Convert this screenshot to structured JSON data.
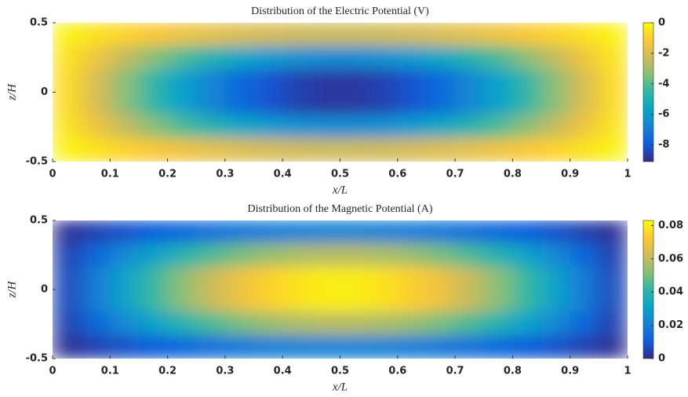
{
  "chart_data": [
    {
      "type": "heatmap",
      "title": "Distribution of the Electric Potential (V)",
      "xlabel": "x/L",
      "ylabel": "z/H",
      "x": [
        0.025,
        0.075,
        0.125,
        0.175,
        0.225,
        0.275,
        0.325,
        0.375,
        0.425,
        0.475,
        0.525,
        0.575,
        0.625,
        0.675,
        0.725,
        0.775,
        0.825,
        0.875,
        0.925,
        0.975
      ],
      "y": [
        0.4167,
        0.25,
        0.0833,
        -0.0833,
        -0.25,
        -0.4167
      ],
      "values": [
        [
          -0.18,
          -0.55,
          -0.9,
          -1.23,
          -1.53,
          -1.79,
          -2.01,
          -2.18,
          -2.29,
          -2.35,
          -2.35,
          -2.29,
          -2.18,
          -2.01,
          -1.79,
          -1.53,
          -1.23,
          -0.9,
          -0.55,
          -0.18
        ],
        [
          -0.51,
          -1.5,
          -2.46,
          -3.36,
          -4.18,
          -4.89,
          -5.49,
          -5.95,
          -6.26,
          -6.42,
          -6.42,
          -6.26,
          -5.95,
          -5.49,
          -4.89,
          -4.18,
          -3.36,
          -2.46,
          -1.5,
          -0.51
        ],
        [
          -0.69,
          -2.05,
          -3.36,
          -4.59,
          -5.71,
          -6.68,
          -7.49,
          -8.12,
          -8.55,
          -8.76,
          -8.76,
          -8.55,
          -8.12,
          -7.49,
          -6.68,
          -5.71,
          -4.59,
          -3.36,
          -2.05,
          -0.69
        ],
        [
          -0.69,
          -2.05,
          -3.36,
          -4.59,
          -5.71,
          -6.68,
          -7.49,
          -8.12,
          -8.55,
          -8.76,
          -8.76,
          -8.55,
          -8.12,
          -7.49,
          -6.68,
          -5.71,
          -4.59,
          -3.36,
          -2.05,
          -0.69
        ],
        [
          -0.51,
          -1.5,
          -2.46,
          -3.36,
          -4.18,
          -4.89,
          -5.49,
          -5.95,
          -6.26,
          -6.42,
          -6.42,
          -6.26,
          -5.95,
          -5.49,
          -4.89,
          -4.18,
          -3.36,
          -2.46,
          -1.5,
          -0.51
        ],
        [
          -0.18,
          -0.55,
          -0.9,
          -1.23,
          -1.53,
          -1.79,
          -2.01,
          -2.18,
          -2.29,
          -2.35,
          -2.35,
          -2.29,
          -2.18,
          -2.01,
          -1.79,
          -1.53,
          -1.23,
          -0.9,
          -0.55,
          -0.18
        ]
      ],
      "xlim": [
        0,
        1
      ],
      "xticks": [
        0,
        0.1,
        0.2,
        0.3,
        0.4,
        0.5,
        0.6,
        0.7,
        0.8,
        0.9,
        1
      ],
      "ylim": [
        -0.5,
        0.5
      ],
      "yticks": [
        -0.5,
        0,
        0.5
      ],
      "clim": [
        -9.1,
        0
      ],
      "cticks": [
        0,
        -2,
        -4,
        -6,
        -8
      ],
      "colormap": [
        "#352a87",
        "#0f5cdd",
        "#1481d6",
        "#06a4ca",
        "#2eb7a4",
        "#87bf77",
        "#d1bb59",
        "#fec832",
        "#f9fb0e"
      ]
    },
    {
      "type": "heatmap",
      "title": "Distribution of the Magnetic Potential (A)",
      "xlabel": "x/L",
      "ylabel": "z/H",
      "x": [
        0.025,
        0.075,
        0.125,
        0.175,
        0.225,
        0.275,
        0.325,
        0.375,
        0.425,
        0.475,
        0.525,
        0.575,
        0.625,
        0.675,
        0.725,
        0.775,
        0.825,
        0.875,
        0.925,
        0.975
      ],
      "y": [
        0.4167,
        0.25,
        0.0833,
        -0.0833,
        -0.25,
        -0.4167
      ],
      "values": [
        [
          0.0017,
          0.005,
          0.0082,
          0.0112,
          0.0139,
          0.0163,
          0.0183,
          0.0198,
          0.0209,
          0.0214,
          0.0214,
          0.0209,
          0.0198,
          0.0183,
          0.0163,
          0.0139,
          0.0112,
          0.0082,
          0.005,
          0.0017
        ],
        [
          0.0046,
          0.0137,
          0.0225,
          0.0307,
          0.0381,
          0.0446,
          0.05,
          0.0542,
          0.0571,
          0.0585,
          0.0585,
          0.0571,
          0.0542,
          0.05,
          0.0446,
          0.0381,
          0.0307,
          0.0225,
          0.0137,
          0.0046
        ],
        [
          0.0063,
          0.0187,
          0.0307,
          0.0419,
          0.0521,
          0.061,
          0.0684,
          0.0741,
          0.078,
          0.0799,
          0.0799,
          0.078,
          0.0741,
          0.0684,
          0.061,
          0.0521,
          0.0419,
          0.0307,
          0.0187,
          0.0063
        ],
        [
          0.0063,
          0.0187,
          0.0307,
          0.0419,
          0.0521,
          0.061,
          0.0684,
          0.0741,
          0.078,
          0.0799,
          0.0799,
          0.078,
          0.0741,
          0.0684,
          0.061,
          0.0521,
          0.0419,
          0.0307,
          0.0187,
          0.0063
        ],
        [
          0.0046,
          0.0137,
          0.0225,
          0.0307,
          0.0381,
          0.0446,
          0.05,
          0.0542,
          0.0571,
          0.0585,
          0.0585,
          0.0571,
          0.0542,
          0.05,
          0.0446,
          0.0381,
          0.0307,
          0.0225,
          0.0137,
          0.0046
        ],
        [
          0.0017,
          0.005,
          0.0082,
          0.0112,
          0.0139,
          0.0163,
          0.0183,
          0.0198,
          0.0209,
          0.0214,
          0.0214,
          0.0209,
          0.0198,
          0.0183,
          0.0163,
          0.0139,
          0.0112,
          0.0082,
          0.005,
          0.0017
        ]
      ],
      "xlim": [
        0,
        1
      ],
      "xticks": [
        0,
        0.1,
        0.2,
        0.3,
        0.4,
        0.5,
        0.6,
        0.7,
        0.8,
        0.9,
        1
      ],
      "ylim": [
        -0.5,
        0.5
      ],
      "yticks": [
        -0.5,
        0,
        0.5
      ],
      "clim": [
        0,
        0.083
      ],
      "cticks": [
        0,
        0.02,
        0.04,
        0.06,
        0.08
      ],
      "colormap": [
        "#352a87",
        "#0f5cdd",
        "#1481d6",
        "#06a4ca",
        "#2eb7a4",
        "#87bf77",
        "#d1bb59",
        "#fec832",
        "#f9fb0e"
      ]
    }
  ]
}
